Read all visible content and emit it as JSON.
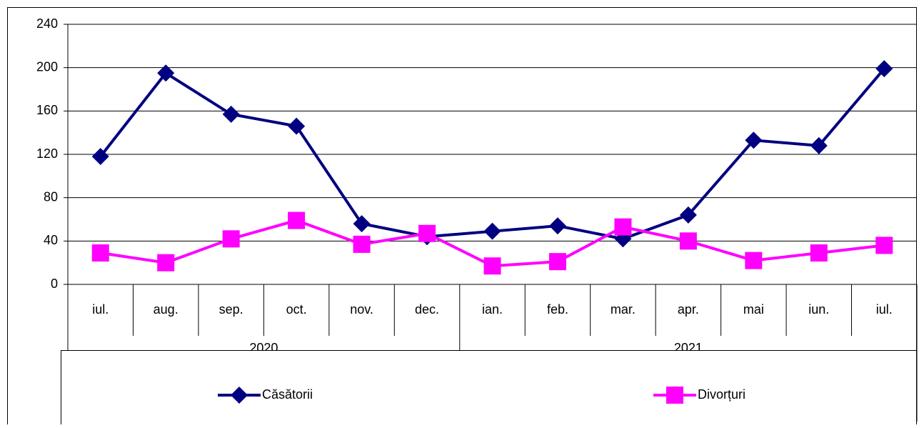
{
  "chart_data": {
    "type": "line",
    "categories": [
      "iul.",
      "aug.",
      "sep.",
      "oct.",
      "nov.",
      "dec.",
      "ian.",
      "feb.",
      "mar.",
      "apr.",
      "mai",
      "iun.",
      "iul."
    ],
    "category_groups": [
      "2020",
      null,
      null,
      null,
      null,
      null,
      "2021",
      null,
      null,
      null,
      null,
      null,
      null
    ],
    "series": [
      {
        "name": "Căsătorii",
        "color": "#000080",
        "marker": "diamond",
        "values": [
          118,
          195,
          157,
          146,
          56,
          44,
          49,
          54,
          42,
          64,
          133,
          128,
          199
        ]
      },
      {
        "name": "Divorțuri",
        "color": "#ff00ff",
        "marker": "square",
        "values": [
          29,
          20,
          42,
          59,
          37,
          47,
          17,
          21,
          53,
          40,
          22,
          29,
          36
        ]
      }
    ],
    "ylim": [
      0,
      240
    ],
    "yticks": [
      0,
      40,
      80,
      120,
      160,
      200,
      240
    ],
    "grid": true,
    "legend": "bottom"
  }
}
